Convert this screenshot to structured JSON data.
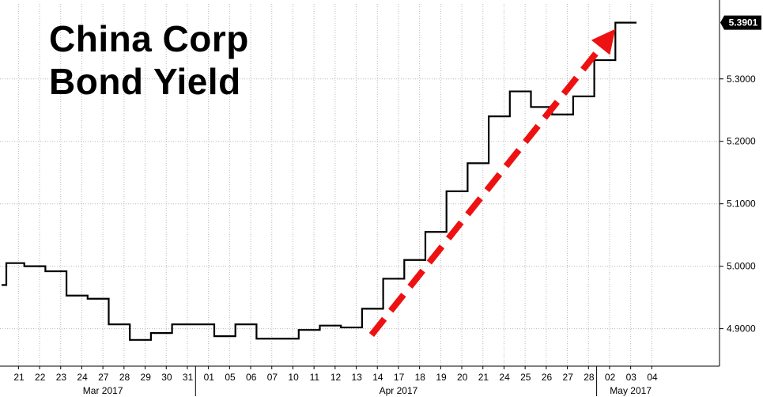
{
  "chart_data": {
    "type": "line",
    "title": [
      "China Corp",
      "Bond Yield"
    ],
    "xlabel": "",
    "ylabel": "",
    "y_ticks": [
      "4.9000",
      "5.0000",
      "5.1000",
      "5.2000",
      "5.3000"
    ],
    "ylim": [
      4.84,
      5.42
    ],
    "last_value": "5.3901",
    "grid": true,
    "style": "step",
    "line_color": "#000000",
    "annotation": {
      "type": "dashed-arrow",
      "color": "#ee1111",
      "from": [
        "14",
        4.89
      ],
      "to": [
        "03",
        5.38
      ]
    },
    "categories": [
      "21",
      "22",
      "23",
      "24",
      "27",
      "28",
      "29",
      "30",
      "31",
      "01",
      "05",
      "06",
      "07",
      "10",
      "11",
      "12",
      "13",
      "14",
      "17",
      "18",
      "19",
      "20",
      "21",
      "24",
      "25",
      "26",
      "27",
      "28",
      "02",
      "03",
      "04"
    ],
    "months": [
      {
        "label": "Mar 2017",
        "start": 0,
        "end": 8
      },
      {
        "label": "Apr 2017",
        "start": 9,
        "end": 27
      },
      {
        "label": "May 2017",
        "start": 28,
        "end": 30
      }
    ],
    "series": [
      {
        "values": [
          5.005,
          5.0,
          4.992,
          4.953,
          4.948,
          4.907,
          4.882,
          4.893,
          4.907,
          4.907,
          4.888,
          4.907,
          4.884,
          4.884,
          4.898,
          4.905,
          4.902,
          4.932,
          4.98,
          5.01,
          5.055,
          5.12,
          5.165,
          5.24,
          5.28,
          5.255,
          5.243,
          5.272,
          5.33,
          5.3901,
          null
        ]
      }
    ]
  }
}
